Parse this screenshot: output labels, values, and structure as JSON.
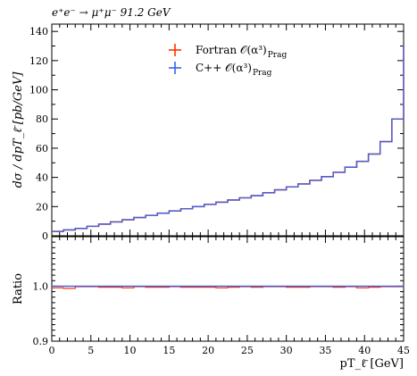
{
  "chart_data": {
    "type": "line",
    "title": "e⁺e⁻ → μ⁺μ⁻ 91.2 GeV",
    "xlabel": "pT_ℓ̄ [GeV]",
    "upper": {
      "ylabel": "dσ / dpT_ℓ̄ [pb/GeV]",
      "ylim": [
        0,
        145
      ],
      "yticks": [
        0,
        20,
        40,
        60,
        80,
        100,
        120,
        140
      ],
      "ytick_labels": [
        "0",
        "20",
        "40",
        "60",
        "80",
        "100",
        "120",
        "140"
      ]
    },
    "lower": {
      "ylabel": "Ratio",
      "ylim": [
        0.9,
        1.09
      ],
      "yticks": [
        0.9,
        1.0
      ],
      "ytick_labels": [
        "0.9",
        "1.0"
      ]
    },
    "xlim": [
      0,
      45
    ],
    "xticks": [
      0,
      5,
      10,
      15,
      20,
      25,
      30,
      35,
      40,
      45
    ],
    "xtick_labels": [
      "0",
      "5",
      "10",
      "15",
      "20",
      "25",
      "30",
      "35",
      "40",
      "45"
    ],
    "bin_edges": [
      0,
      1.5,
      3,
      4.5,
      6,
      7.5,
      9,
      10.5,
      12,
      13.5,
      15,
      16.5,
      18,
      19.5,
      21,
      22.5,
      24,
      25.5,
      27,
      28.5,
      30,
      31.5,
      33,
      34.5,
      36,
      37.5,
      39,
      40.5,
      42,
      43.5,
      45
    ],
    "series": [
      {
        "name": "Fortran 𝒪(α³)Prag",
        "color": "#ff3300",
        "values": [
          3,
          4,
          5,
          6.5,
          8,
          9.5,
          11,
          12.5,
          14,
          15.5,
          17,
          18.5,
          20,
          21.5,
          23,
          24.5,
          26,
          27.5,
          29.5,
          31.5,
          33.5,
          35.5,
          38,
          40.5,
          43.5,
          47,
          51,
          56,
          64.5,
          80,
          132
        ],
        "ratio": [
          0.997,
          0.996,
          0.999,
          0.999,
          0.998,
          0.998,
          0.997,
          0.999,
          0.998,
          0.998,
          0.999,
          0.998,
          0.998,
          0.998,
          0.997,
          0.998,
          0.999,
          0.998,
          0.999,
          0.999,
          0.998,
          0.998,
          0.999,
          0.999,
          0.998,
          0.999,
          0.997,
          0.998,
          0.999,
          0.999,
          0.999
        ]
      },
      {
        "name": "C++ 𝒪(α³)Prag",
        "color": "#3366ee",
        "values": [
          3,
          4,
          5,
          6.5,
          8,
          9.5,
          11,
          12.5,
          14,
          15.5,
          17,
          18.5,
          20,
          21.5,
          23,
          24.5,
          26,
          27.5,
          29.5,
          31.5,
          33.5,
          35.5,
          38,
          40.5,
          43.5,
          47,
          51,
          56,
          64.5,
          80,
          132
        ],
        "ratio": [
          1.0,
          1.0,
          1.0,
          1.0,
          1.0,
          1.0,
          1.0,
          1.0,
          1.0,
          1.0,
          1.0,
          1.0,
          1.0,
          1.0,
          1.0,
          1.0,
          1.0,
          1.0,
          1.0,
          1.0,
          1.0,
          1.0,
          1.0,
          1.0,
          1.0,
          1.0,
          1.0,
          1.0,
          1.0,
          1.0,
          1.0
        ]
      }
    ],
    "legend": {
      "placement": "top-center",
      "entries": [
        {
          "text": "Fortran 𝒪(α³)",
          "sub": "Prag",
          "color": "#ff3300"
        },
        {
          "text": "C++ 𝒪(α³)",
          "sub": "Prag",
          "color": "#3366ee"
        }
      ]
    },
    "grid": false
  }
}
